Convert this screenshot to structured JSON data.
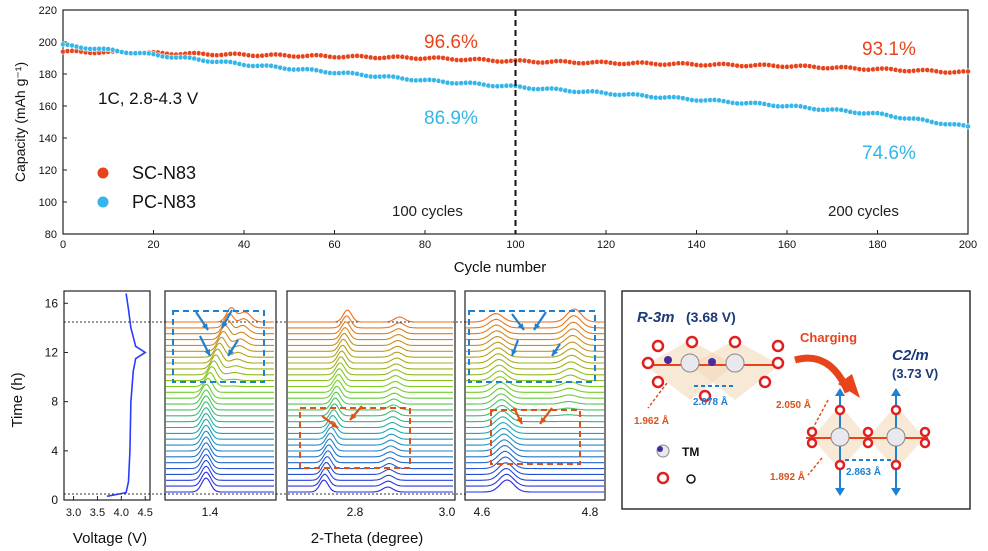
{
  "chart_data": [
    {
      "type": "scatter",
      "xlabel": "Cycle number",
      "ylabel": "Capacity (mAh g⁻¹)",
      "xlim": [
        0,
        200
      ],
      "ylim": [
        80,
        220
      ],
      "xticks": [
        "0",
        "20",
        "40",
        "60",
        "80",
        "100",
        "120",
        "140",
        "160",
        "180",
        "200"
      ],
      "yticks": [
        "80",
        "100",
        "120",
        "140",
        "160",
        "180",
        "200",
        "220"
      ],
      "condition_label": "1C, 2.8-4.3 V",
      "series": [
        {
          "name": "SC-N83",
          "color": "#e8441c",
          "x": [
            0,
            20,
            40,
            60,
            80,
            100,
            120,
            140,
            160,
            180,
            200
          ],
          "values": [
            194,
            193,
            192,
            191,
            190,
            188,
            187,
            186,
            185,
            183,
            181
          ]
        },
        {
          "name": "PC-N83",
          "color": "#35b5e8",
          "x": [
            0,
            20,
            40,
            60,
            80,
            100,
            120,
            140,
            160,
            180,
            200
          ],
          "values": [
            198,
            192,
            186,
            181,
            176,
            172,
            168,
            164,
            160,
            155,
            147
          ]
        }
      ],
      "annotations": [
        {
          "text": "96.6%",
          "color": "#e8441c"
        },
        {
          "text": "93.1%",
          "color": "#e8441c"
        },
        {
          "text": "86.9%",
          "color": "#35b5e8"
        },
        {
          "text": "74.6%",
          "color": "#35b5e8"
        },
        {
          "text": "100 cycles",
          "color": "#222222"
        },
        {
          "text": "200 cycles",
          "color": "#222222"
        }
      ],
      "vline_at": 100
    },
    {
      "type": "line",
      "xlabel": "Voltage (V)",
      "ylabel": "Time (h)",
      "xticks": [
        "3.0",
        "3.5",
        "4.0",
        "4.5"
      ],
      "yticks": [
        "0",
        "4",
        "8",
        "12",
        "16"
      ],
      "ylim": [
        0,
        17
      ],
      "xlim": [
        2.8,
        4.6
      ],
      "color": "#2a3cff",
      "points": [
        [
          3.7,
          0.3
        ],
        [
          4.1,
          0.6
        ],
        [
          4.15,
          1.5
        ],
        [
          4.18,
          4
        ],
        [
          4.2,
          8
        ],
        [
          4.25,
          10.5
        ],
        [
          4.3,
          11.5
        ],
        [
          4.5,
          12
        ],
        [
          4.3,
          12.5
        ],
        [
          4.2,
          14
        ],
        [
          4.15,
          15.5
        ],
        [
          4.1,
          16.8
        ]
      ]
    }
  ],
  "xrd": {
    "xlabel": "2-Theta (degree)",
    "panels": [
      {
        "ticks": [
          "1.4"
        ]
      },
      {
        "ticks": [
          "2.8",
          "3.0"
        ]
      },
      {
        "ticks": [
          "4.6",
          "4.8"
        ]
      }
    ]
  },
  "structure": {
    "phase1_label": "R-3m",
    "phase1_voltage": "(3.68 V)",
    "arrow_label": "Charging",
    "phase2_label": "C2/m",
    "phase2_voltage": "(3.73 V)",
    "d1": "1.962 Å",
    "d2": "2.878 Å",
    "d3": "2.050 Å",
    "d4": "1.892 Å",
    "d5": "2.863 Å",
    "legend_tm": "TM",
    "legend_o": "O"
  },
  "colors": {
    "sc": "#e8441c",
    "pc": "#35b5e8",
    "voltage": "#2a3cff",
    "box_blue": "#1f7fd1",
    "box_orange": "#d9541a"
  }
}
